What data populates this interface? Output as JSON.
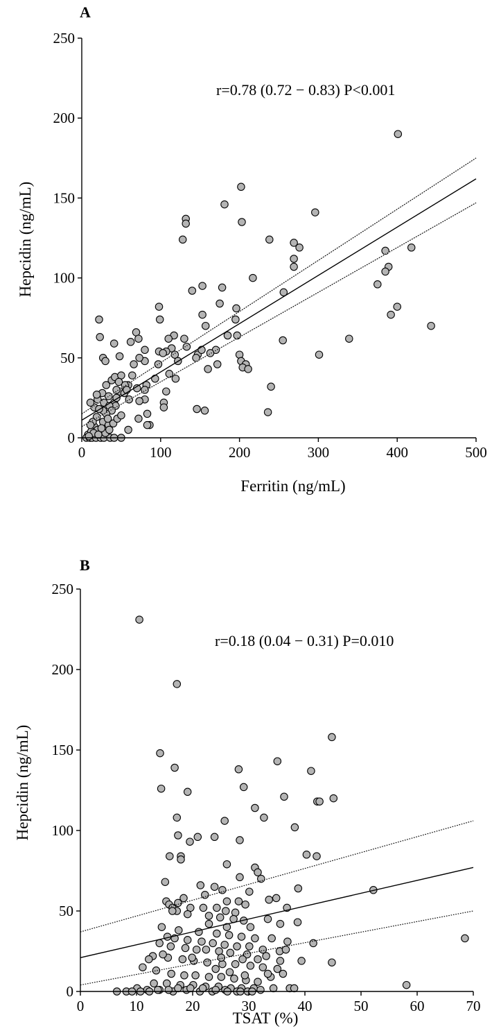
{
  "chart_data": [
    {
      "panel": "A",
      "type": "scatter",
      "xlabel": "Ferritin  (ng/mL)",
      "ylabel": "Hepcidin  (ng/mL)",
      "xlim": [
        0,
        500
      ],
      "ylim": [
        0,
        250
      ],
      "xticks": [
        0,
        100,
        200,
        300,
        400,
        500
      ],
      "yticks": [
        0,
        50,
        100,
        150,
        200,
        250
      ],
      "annotation": "r=0.78 (0.72 − 0.83) P<0.001",
      "regression": {
        "fit": [
          [
            0,
            11
          ],
          [
            500,
            162
          ]
        ],
        "ci_upper": [
          [
            0,
            15
          ],
          [
            500,
            175
          ]
        ],
        "ci_lower": [
          [
            0,
            7
          ],
          [
            500,
            147
          ]
        ]
      },
      "points": [
        [
          401,
          190
        ],
        [
          202,
          157
        ],
        [
          181,
          146
        ],
        [
          296,
          141
        ],
        [
          132,
          137
        ],
        [
          132,
          134
        ],
        [
          203,
          135
        ],
        [
          128,
          124
        ],
        [
          238,
          124
        ],
        [
          269,
          122
        ],
        [
          276,
          119
        ],
        [
          269,
          112
        ],
        [
          269,
          107
        ],
        [
          418,
          119
        ],
        [
          385,
          117
        ],
        [
          389,
          107
        ],
        [
          385,
          104
        ],
        [
          217,
          100
        ],
        [
          375,
          96
        ],
        [
          153,
          95
        ],
        [
          178,
          94
        ],
        [
          140,
          92
        ],
        [
          256,
          91
        ],
        [
          98,
          82
        ],
        [
          196,
          81
        ],
        [
          400,
          82
        ],
        [
          392,
          77
        ],
        [
          175,
          84
        ],
        [
          195,
          74
        ],
        [
          99,
          74
        ],
        [
          22,
          74
        ],
        [
          153,
          77
        ],
        [
          69,
          66
        ],
        [
          157,
          70
        ],
        [
          443,
          70
        ],
        [
          117,
          64
        ],
        [
          110,
          62
        ],
        [
          130,
          62
        ],
        [
          72,
          62
        ],
        [
          185,
          64
        ],
        [
          197,
          64
        ],
        [
          23,
          63
        ],
        [
          41,
          59
        ],
        [
          62,
          60
        ],
        [
          80,
          55
        ],
        [
          114,
          56
        ],
        [
          133,
          57
        ],
        [
          170,
          55
        ],
        [
          98,
          54
        ],
        [
          107,
          54
        ],
        [
          103,
          53
        ],
        [
          118,
          52
        ],
        [
          147,
          52
        ],
        [
          163,
          53
        ],
        [
          145,
          50
        ],
        [
          152,
          55
        ],
        [
          200,
          52
        ],
        [
          202,
          48
        ],
        [
          208,
          46
        ],
        [
          204,
          44
        ],
        [
          211,
          43
        ],
        [
          160,
          43
        ],
        [
          172,
          46
        ],
        [
          122,
          48
        ],
        [
          80,
          48
        ],
        [
          97,
          46
        ],
        [
          66,
          46
        ],
        [
          73,
          50
        ],
        [
          48,
          51
        ],
        [
          27,
          50
        ],
        [
          30,
          48
        ],
        [
          255,
          61
        ],
        [
          339,
          62
        ],
        [
          301,
          52
        ],
        [
          111,
          40
        ],
        [
          119,
          37
        ],
        [
          93,
          37
        ],
        [
          82,
          33
        ],
        [
          107,
          29
        ],
        [
          104,
          22
        ],
        [
          104,
          19
        ],
        [
          59,
          33
        ],
        [
          70,
          31
        ],
        [
          80,
          30
        ],
        [
          48,
          29
        ],
        [
          44,
          30
        ],
        [
          54,
          28
        ],
        [
          34,
          26
        ],
        [
          26,
          28
        ],
        [
          16,
          19
        ],
        [
          20,
          24
        ],
        [
          11,
          22
        ],
        [
          28,
          22
        ],
        [
          41,
          22
        ],
        [
          60,
          24
        ],
        [
          80,
          24
        ],
        [
          73,
          23
        ],
        [
          83,
          15
        ],
        [
          72,
          12
        ],
        [
          86,
          8
        ],
        [
          83,
          8
        ],
        [
          59,
          5
        ],
        [
          43,
          20
        ],
        [
          35,
          20
        ],
        [
          38,
          17
        ],
        [
          31,
          15
        ],
        [
          19,
          13
        ],
        [
          27,
          10
        ],
        [
          34,
          8
        ],
        [
          16,
          7
        ],
        [
          20,
          5
        ],
        [
          25,
          2
        ],
        [
          8,
          2
        ],
        [
          12,
          4
        ],
        [
          6,
          0
        ],
        [
          10,
          0
        ],
        [
          13,
          0
        ],
        [
          18,
          0
        ],
        [
          24,
          0
        ],
        [
          28,
          0
        ],
        [
          36,
          0
        ],
        [
          41,
          0
        ],
        [
          50,
          0
        ],
        [
          15,
          3
        ],
        [
          21,
          2
        ],
        [
          30,
          3
        ],
        [
          9,
          1
        ],
        [
          25,
          6
        ],
        [
          35,
          5
        ],
        [
          40,
          9
        ],
        [
          45,
          12
        ],
        [
          50,
          14
        ],
        [
          33,
          12
        ],
        [
          44,
          25
        ],
        [
          38,
          36
        ],
        [
          42,
          38
        ],
        [
          50,
          39
        ],
        [
          55,
          33
        ],
        [
          27,
          17
        ],
        [
          22,
          18
        ],
        [
          14,
          10
        ],
        [
          11,
          8
        ],
        [
          31,
          33
        ],
        [
          19,
          27
        ],
        [
          47,
          35
        ],
        [
          57,
          30
        ],
        [
          64,
          39
        ],
        [
          236,
          16
        ],
        [
          240,
          32
        ],
        [
          146,
          18
        ],
        [
          156,
          17
        ]
      ]
    },
    {
      "panel": "B",
      "type": "scatter",
      "xlabel": "TSAT (%)",
      "ylabel": "Hepcidin  (ng/mL)",
      "xlim": [
        0,
        70
      ],
      "ylim": [
        0,
        250
      ],
      "xticks": [
        0,
        10,
        20,
        30,
        40,
        50,
        60,
        70
      ],
      "yticks": [
        0,
        50,
        100,
        150,
        200,
        250
      ],
      "annotation": "r=0.18 (0.04 − 0.31) P=0.010",
      "regression": {
        "fit": [
          [
            0,
            21
          ],
          [
            70,
            77
          ]
        ],
        "ci_upper": [
          [
            0,
            37
          ],
          [
            70,
            106
          ]
        ],
        "ci_lower": [
          [
            0,
            4
          ],
          [
            70,
            50
          ]
        ]
      },
      "points": [
        [
          10.5,
          231
        ],
        [
          17.2,
          191
        ],
        [
          14.2,
          148
        ],
        [
          16.8,
          139
        ],
        [
          14.4,
          126
        ],
        [
          19.1,
          124
        ],
        [
          28.2,
          138
        ],
        [
          35.1,
          143
        ],
        [
          41.1,
          137
        ],
        [
          44.8,
          158
        ],
        [
          45.1,
          120
        ],
        [
          42.2,
          118
        ],
        [
          42.6,
          118
        ],
        [
          36.3,
          121
        ],
        [
          29.1,
          127
        ],
        [
          31.1,
          114
        ],
        [
          32.7,
          108
        ],
        [
          17.2,
          108
        ],
        [
          25.7,
          106
        ],
        [
          38.2,
          102
        ],
        [
          17.4,
          97
        ],
        [
          20.9,
          96
        ],
        [
          23.9,
          96
        ],
        [
          28.4,
          94
        ],
        [
          19.5,
          93
        ],
        [
          17.9,
          84
        ],
        [
          15.9,
          84
        ],
        [
          17.9,
          82
        ],
        [
          26.1,
          79
        ],
        [
          31.1,
          77
        ],
        [
          31.6,
          74
        ],
        [
          32.2,
          70
        ],
        [
          28.4,
          71
        ],
        [
          40.3,
          85
        ],
        [
          42.1,
          84
        ],
        [
          15.1,
          68
        ],
        [
          21.4,
          66
        ],
        [
          23.9,
          65
        ],
        [
          25.3,
          63
        ],
        [
          22.2,
          60
        ],
        [
          30.1,
          62
        ],
        [
          38.8,
          64
        ],
        [
          52.2,
          63
        ],
        [
          26.1,
          56
        ],
        [
          28.2,
          56
        ],
        [
          18.4,
          58
        ],
        [
          17.4,
          55
        ],
        [
          15.3,
          56
        ],
        [
          15.8,
          54
        ],
        [
          16.4,
          52
        ],
        [
          17.2,
          50
        ],
        [
          19.6,
          52
        ],
        [
          21.9,
          52
        ],
        [
          24.3,
          52
        ],
        [
          25.9,
          50
        ],
        [
          27.6,
          49
        ],
        [
          29.4,
          54
        ],
        [
          33.6,
          57
        ],
        [
          34.9,
          58
        ],
        [
          36.8,
          52
        ],
        [
          16.4,
          50
        ],
        [
          19.1,
          48
        ],
        [
          22.9,
          47
        ],
        [
          24.9,
          46
        ],
        [
          27.3,
          45
        ],
        [
          29.1,
          44
        ],
        [
          33.4,
          45
        ],
        [
          35.6,
          42
        ],
        [
          38.7,
          43
        ],
        [
          14.5,
          40
        ],
        [
          17.5,
          38
        ],
        [
          21.1,
          37
        ],
        [
          24.3,
          36
        ],
        [
          26.5,
          35
        ],
        [
          28.7,
          34
        ],
        [
          31.1,
          33
        ],
        [
          34.1,
          33
        ],
        [
          36.9,
          31
        ],
        [
          41.5,
          30
        ],
        [
          68.5,
          33
        ],
        [
          14.1,
          30
        ],
        [
          16.1,
          28
        ],
        [
          18.7,
          27
        ],
        [
          20.7,
          26
        ],
        [
          22.4,
          26
        ],
        [
          24.7,
          25
        ],
        [
          26.7,
          24
        ],
        [
          29.7,
          23
        ],
        [
          33.1,
          22
        ],
        [
          12.9,
          22
        ],
        [
          15.6,
          21
        ],
        [
          18.2,
          20
        ],
        [
          20.2,
          19
        ],
        [
          22.6,
          18
        ],
        [
          25.3,
          17
        ],
        [
          27.6,
          17
        ],
        [
          30.3,
          16
        ],
        [
          32.5,
          15
        ],
        [
          35.1,
          14
        ],
        [
          39.4,
          19
        ],
        [
          44.8,
          18
        ],
        [
          11.1,
          15
        ],
        [
          13.5,
          13
        ],
        [
          16.2,
          11
        ],
        [
          18.5,
          10
        ],
        [
          20.5,
          10
        ],
        [
          22.9,
          9
        ],
        [
          25.1,
          9
        ],
        [
          27.4,
          8
        ],
        [
          29.5,
          7
        ],
        [
          31.6,
          6
        ],
        [
          33.9,
          9
        ],
        [
          13.1,
          5
        ],
        [
          15.4,
          5
        ],
        [
          17.8,
          4
        ],
        [
          20.1,
          4
        ],
        [
          22.3,
          3
        ],
        [
          24.6,
          3
        ],
        [
          26.8,
          2
        ],
        [
          28.7,
          2
        ],
        [
          30.9,
          2
        ],
        [
          10.1,
          2
        ],
        [
          11.9,
          1
        ],
        [
          14.1,
          1
        ],
        [
          16.5,
          0
        ],
        [
          18.9,
          1
        ],
        [
          21.3,
          0
        ],
        [
          23.5,
          0
        ],
        [
          25.8,
          1
        ],
        [
          27.9,
          0
        ],
        [
          29.8,
          0
        ],
        [
          32.1,
          1
        ],
        [
          34.4,
          2
        ],
        [
          6.5,
          0
        ],
        [
          8.2,
          0
        ],
        [
          9.2,
          0
        ],
        [
          10.7,
          0
        ],
        [
          12.3,
          0
        ],
        [
          13.8,
          1
        ],
        [
          15.7,
          1
        ],
        [
          17.4,
          2
        ],
        [
          19.6,
          2
        ],
        [
          21.8,
          2
        ],
        [
          24.1,
          1
        ],
        [
          26.2,
          0
        ],
        [
          28.5,
          0
        ],
        [
          30.6,
          0
        ],
        [
          37.3,
          2
        ],
        [
          38.1,
          2
        ],
        [
          58.1,
          4
        ],
        [
          15.5,
          34
        ],
        [
          16.8,
          33
        ],
        [
          19.1,
          32
        ],
        [
          21.6,
          31
        ],
        [
          23.6,
          30
        ],
        [
          25.7,
          29
        ],
        [
          27.9,
          28
        ],
        [
          30.1,
          28
        ],
        [
          32.5,
          26
        ],
        [
          35.5,
          25
        ],
        [
          36.6,
          26
        ],
        [
          14.7,
          23
        ],
        [
          19.9,
          21
        ],
        [
          25.1,
          21
        ],
        [
          28.9,
          20
        ],
        [
          31.6,
          20
        ],
        [
          35.6,
          19
        ],
        [
          12.2,
          20
        ],
        [
          24.1,
          14
        ],
        [
          26.6,
          12
        ],
        [
          29.3,
          10
        ],
        [
          33.4,
          11
        ],
        [
          36.1,
          11
        ],
        [
          22.9,
          42
        ],
        [
          26.1,
          40
        ],
        [
          30.3,
          40
        ]
      ]
    }
  ]
}
